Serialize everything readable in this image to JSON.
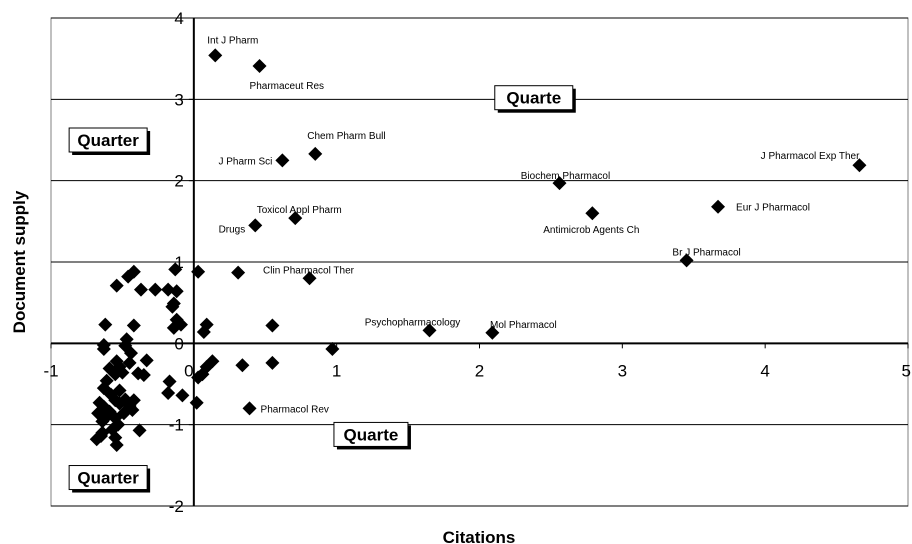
{
  "chart_data": {
    "type": "scatter",
    "title": "",
    "xlabel": "Citations",
    "ylabel": "Document supply",
    "xlim": [
      -1,
      5
    ],
    "ylim": [
      -2,
      4
    ],
    "x_ticks": [
      "-1",
      "0",
      "1",
      "2",
      "3",
      "4",
      "5"
    ],
    "y_ticks": [
      "-2",
      "-1",
      "0",
      "1",
      "2",
      "3",
      "4"
    ],
    "grid": "horizontal",
    "marker": "diamond",
    "marker_color": "#000000",
    "labeled_points": [
      {
        "label": "Int J Pharm",
        "x": 0.15,
        "y": 3.54
      },
      {
        "label": "Pharmaceut Res",
        "x": 0.46,
        "y": 3.41
      },
      {
        "label": "Chem Pharm Bull",
        "x": 0.85,
        "y": 2.33
      },
      {
        "label": "J Pharm Sci",
        "x": 0.62,
        "y": 2.25
      },
      {
        "label": "J Pharmacol Exp Ther",
        "x": 4.66,
        "y": 2.19
      },
      {
        "label": "Biochem Pharmacol",
        "x": 2.56,
        "y": 1.97
      },
      {
        "label": "Eur J Pharmacol",
        "x": 3.67,
        "y": 1.68
      },
      {
        "label": "Antimicrob Agents Ch",
        "x": 2.79,
        "y": 1.6
      },
      {
        "label": "Toxicol Appl Pharm",
        "x": 0.71,
        "y": 1.54
      },
      {
        "label": "Drugs",
        "x": 0.43,
        "y": 1.45
      },
      {
        "label": "Br J Pharmacol",
        "x": 3.45,
        "y": 1.02
      },
      {
        "label": "Clin Pharmacol Ther",
        "x": 0.81,
        "y": 0.8
      },
      {
        "label": "Psychopharmacology",
        "x": 1.65,
        "y": 0.16
      },
      {
        "label": "Mol Pharmacol",
        "x": 2.09,
        "y": 0.13
      },
      {
        "label": "Pharmacol Rev",
        "x": 0.39,
        "y": -0.8
      }
    ],
    "unlabeled_points": [
      [
        0.03,
        0.88
      ],
      [
        0.31,
        0.87
      ],
      [
        -0.13,
        0.91
      ],
      [
        -0.54,
        0.71
      ],
      [
        -0.46,
        0.82
      ],
      [
        -0.42,
        0.88
      ],
      [
        -0.37,
        0.66
      ],
      [
        -0.27,
        0.66
      ],
      [
        -0.18,
        0.66
      ],
      [
        -0.12,
        0.64
      ],
      [
        -0.14,
        0.49
      ],
      [
        -0.15,
        0.45
      ],
      [
        -0.12,
        0.29
      ],
      [
        -0.09,
        0.23
      ],
      [
        -0.14,
        0.19
      ],
      [
        -0.62,
        0.23
      ],
      [
        -0.42,
        0.22
      ],
      [
        -0.47,
        0.05
      ],
      [
        -0.48,
        -0.03
      ],
      [
        -0.63,
        -0.07
      ],
      [
        0.09,
        0.23
      ],
      [
        0.07,
        0.14
      ],
      [
        0.55,
        0.22
      ],
      [
        0.97,
        -0.07
      ],
      [
        0.55,
        -0.24
      ],
      [
        0.34,
        -0.27
      ],
      [
        0.13,
        -0.22
      ],
      [
        0.09,
        -0.29
      ],
      [
        0.06,
        -0.38
      ],
      [
        0.03,
        -0.42
      ],
      [
        -0.08,
        -0.64
      ],
      [
        -0.17,
        -0.47
      ],
      [
        -0.18,
        -0.61
      ],
      [
        0.02,
        -0.73
      ],
      [
        -0.33,
        -0.21
      ],
      [
        -0.35,
        -0.39
      ],
      [
        -0.39,
        -0.37
      ],
      [
        -0.45,
        -0.24
      ],
      [
        -0.5,
        -0.36
      ],
      [
        -0.52,
        -0.29
      ],
      [
        -0.54,
        -0.22
      ],
      [
        -0.55,
        -0.38
      ],
      [
        -0.59,
        -0.31
      ],
      [
        -0.61,
        -0.46
      ],
      [
        -0.63,
        -0.55
      ],
      [
        -0.58,
        -0.63
      ],
      [
        -0.55,
        -0.7
      ],
      [
        -0.52,
        -0.74
      ],
      [
        -0.48,
        -0.69
      ],
      [
        -0.45,
        -0.77
      ],
      [
        -0.42,
        -0.7
      ],
      [
        -0.43,
        -0.82
      ],
      [
        -0.49,
        -0.86
      ],
      [
        -0.55,
        -0.92
      ],
      [
        -0.59,
        -0.84
      ],
      [
        -0.63,
        -0.78
      ],
      [
        -0.66,
        -0.73
      ],
      [
        -0.67,
        -0.86
      ],
      [
        -0.64,
        -0.96
      ],
      [
        -0.61,
        -0.9
      ],
      [
        -0.53,
        -1.0
      ],
      [
        -0.57,
        -1.06
      ],
      [
        -0.64,
        -1.1
      ],
      [
        -0.68,
        -1.18
      ],
      [
        -0.65,
        -1.14
      ],
      [
        -0.55,
        -1.16
      ],
      [
        -0.54,
        -1.25
      ],
      [
        -0.38,
        -1.07
      ],
      [
        -0.63,
        -0.02
      ],
      [
        -0.44,
        -0.12
      ],
      [
        -0.52,
        -0.58
      ]
    ],
    "quadrant_labels": [
      {
        "text": "Quarter",
        "x": -0.6,
        "y": 2.5
      },
      {
        "text": "Quarte",
        "x": 2.38,
        "y": 3.02
      },
      {
        "text": "Quarte",
        "x": 1.24,
        "y": -1.12
      },
      {
        "text": "Quarter",
        "x": -0.6,
        "y": -1.65
      }
    ]
  }
}
